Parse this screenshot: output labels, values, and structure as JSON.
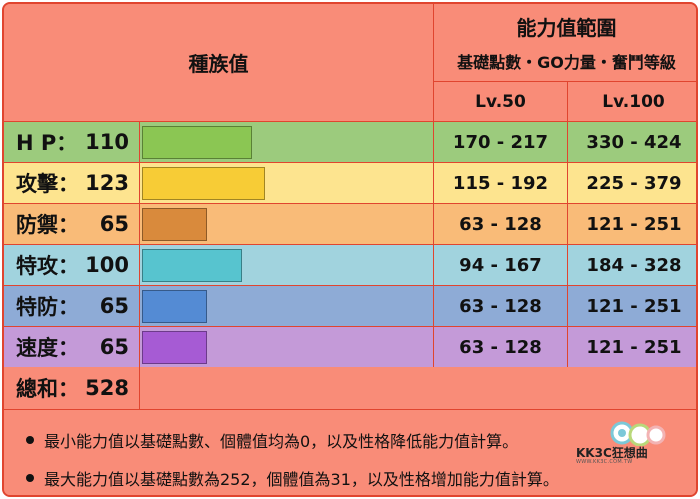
{
  "header": {
    "base_stats": "種族值",
    "range_title": "能力值範圍",
    "range_subtitle": "基礎點數・GO力量・奮鬥等級",
    "lv50": "Lv.50",
    "lv100": "Lv.100"
  },
  "stats": [
    {
      "name": "H P：",
      "value": "110",
      "percent": 43.6,
      "color": "#8bc653",
      "bg": "#9ccb7d",
      "lv50": "170 - 217",
      "lv100": "330 - 424"
    },
    {
      "name": "攻擊：",
      "value": "123",
      "percent": 48.8,
      "color": "#f7cc36",
      "bg": "#fde48f",
      "lv50": "115 - 192",
      "lv100": "225 - 379"
    },
    {
      "name": "防禦：",
      "value": "65",
      "percent": 25.8,
      "color": "#d98a3c",
      "bg": "#f9bb78",
      "lv50": "63 - 128",
      "lv100": "121 - 251"
    },
    {
      "name": "特攻：",
      "value": "100",
      "percent": 39.7,
      "color": "#57c4cf",
      "bg": "#a1d3de",
      "lv50": "94 - 167",
      "lv100": "184 - 328"
    },
    {
      "name": "特防：",
      "value": "65",
      "percent": 25.8,
      "color": "#548bd4",
      "bg": "#8eabd6",
      "lv50": "63 - 128",
      "lv100": "121 - 251"
    },
    {
      "name": "速度：",
      "value": "65",
      "percent": 25.8,
      "color": "#a65bd4",
      "bg": "#c49ad8",
      "lv50": "63 - 128",
      "lv100": "121 - 251"
    }
  ],
  "total": {
    "name": "總和：",
    "value": "528"
  },
  "notes": [
    "最小能力值以基礎點數、個體值均為0，以及性格降低能力值計算。",
    "最大能力值以基礎點數為252，個體值為31，以及性格增加能力值計算。"
  ],
  "logo": {
    "text": "KK3C狂想曲",
    "sub": "WWW.KK3C.COM.TW"
  }
}
